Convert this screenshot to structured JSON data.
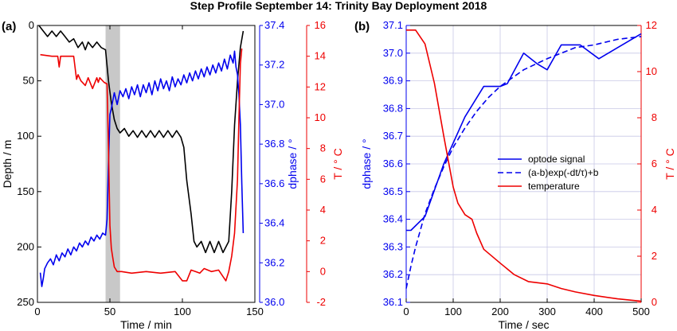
{
  "figure_title": "Step Profile September 14: Trinity Bay Deployment 2018",
  "colors": {
    "black": "#000000",
    "blue": "#0000ee",
    "red": "#ee0000",
    "grid": "#c8c8e6",
    "shade": "#c8c8c8"
  },
  "chart_data": [
    {
      "panel_label": "(a)",
      "type": "line",
      "xlabel": "Time / min",
      "ylabel_left": "Depth / m",
      "ylabel_mid": "dphase / °",
      "ylabel_right": "T / ° C",
      "xlim": [
        0,
        150
      ],
      "ylim_left": [
        250,
        0
      ],
      "ylim_mid": [
        36.0,
        37.4
      ],
      "ylim_right": [
        -2,
        16
      ],
      "x_ticks": [
        0,
        50,
        100,
        150
      ],
      "y_left_ticks": [
        0,
        50,
        100,
        150,
        200,
        250
      ],
      "y_mid_ticks": [
        "36.0",
        "36.2",
        "36.4",
        "36.6",
        "36.8",
        "37.0",
        "37.2",
        "37.4"
      ],
      "y_right_ticks": [
        -2,
        0,
        2,
        4,
        6,
        8,
        10,
        12,
        14,
        16
      ],
      "shaded_x": [
        47,
        57
      ],
      "series": [
        {
          "axis": "left",
          "color": "black",
          "x": [
            1,
            4,
            7,
            10,
            13,
            16,
            19,
            22,
            25,
            28,
            31,
            33,
            35,
            38,
            41,
            44,
            47,
            49,
            51,
            53,
            55,
            57,
            60,
            63,
            66,
            69,
            72,
            75,
            78,
            81,
            84,
            87,
            90,
            93,
            96,
            99,
            101,
            103,
            106,
            108,
            110,
            113,
            116,
            119,
            122,
            125,
            128,
            130,
            132,
            134,
            136,
            138,
            140,
            142
          ],
          "y": [
            0,
            5,
            10,
            5,
            10,
            5,
            10,
            15,
            12,
            20,
            15,
            22,
            15,
            20,
            15,
            20,
            22,
            50,
            70,
            85,
            93,
            97,
            93,
            100,
            95,
            101,
            95,
            101,
            95,
            101,
            95,
            101,
            95,
            101,
            95,
            101,
            110,
            140,
            170,
            195,
            200,
            195,
            205,
            195,
            205,
            195,
            205,
            200,
            195,
            150,
            90,
            50,
            20,
            5
          ]
        },
        {
          "axis": "mid",
          "color": "blue",
          "x": [
            2,
            3,
            4,
            5,
            7,
            9,
            11,
            13,
            15,
            17,
            19,
            21,
            23,
            25,
            27,
            29,
            31,
            33,
            35,
            37,
            39,
            41,
            43,
            45,
            47,
            48,
            49,
            50,
            51,
            52,
            53,
            55,
            57,
            59,
            61,
            63,
            65,
            67,
            69,
            71,
            73,
            75,
            77,
            79,
            81,
            83,
            85,
            87,
            89,
            91,
            93,
            95,
            97,
            99,
            101,
            103,
            105,
            107,
            109,
            111,
            113,
            115,
            117,
            119,
            121,
            123,
            125,
            127,
            129,
            131,
            133,
            135,
            136,
            137,
            138,
            139,
            140,
            141,
            142
          ],
          "y": [
            36.15,
            36.08,
            36.12,
            36.17,
            36.2,
            36.22,
            36.19,
            36.24,
            36.21,
            36.25,
            36.23,
            36.27,
            36.24,
            36.28,
            36.26,
            36.3,
            36.28,
            36.31,
            36.29,
            36.33,
            36.31,
            36.34,
            36.32,
            36.35,
            36.34,
            36.42,
            36.7,
            36.95,
            36.98,
            37.02,
            37.06,
            37.0,
            37.07,
            37.04,
            37.08,
            37.03,
            37.09,
            37.05,
            37.1,
            37.04,
            37.1,
            37.06,
            37.11,
            37.05,
            37.12,
            37.07,
            37.13,
            37.08,
            37.12,
            37.07,
            37.14,
            37.09,
            37.13,
            37.1,
            37.15,
            37.11,
            37.16,
            37.12,
            37.17,
            37.13,
            37.18,
            37.14,
            37.19,
            37.15,
            37.2,
            37.16,
            37.21,
            37.17,
            37.23,
            37.18,
            37.25,
            37.21,
            37.27,
            37.19,
            37.15,
            37.05,
            36.9,
            36.6,
            36.35
          ]
        },
        {
          "axis": "right",
          "color": "red",
          "x": [
            2,
            10,
            14,
            15,
            16,
            20,
            25,
            27,
            28,
            30,
            33,
            35,
            38,
            41,
            42,
            43,
            46,
            48,
            49,
            50,
            51,
            52,
            53,
            55,
            58,
            65,
            75,
            85,
            95,
            100,
            103,
            106,
            109,
            112,
            115,
            120,
            125,
            130,
            132,
            134,
            136,
            138,
            139,
            140,
            141
          ],
          "y": [
            14.1,
            14,
            14,
            13.3,
            14,
            14,
            14,
            12.5,
            12.8,
            12.4,
            12.1,
            12.6,
            11.9,
            12.6,
            12.3,
            12.6,
            12.3,
            12.2,
            8,
            3,
            1.5,
            0.9,
            0.3,
            0,
            0,
            -0.1,
            0,
            -0.1,
            0,
            -0.6,
            -0.6,
            0.1,
            0,
            -0.1,
            0.2,
            0,
            0.1,
            -0.6,
            0.0,
            1,
            2.5,
            6,
            10,
            13.5,
            14.5
          ]
        }
      ]
    },
    {
      "panel_label": "(b)",
      "type": "line",
      "xlabel": "Time / sec",
      "ylabel_left": "dphase / °",
      "ylabel_right": "T / ° C",
      "xlim": [
        0,
        500
      ],
      "ylim_left": [
        36.1,
        37.1
      ],
      "ylim_right": [
        0,
        12
      ],
      "x_ticks": [
        0,
        100,
        200,
        300,
        400,
        500
      ],
      "y_left_ticks": [
        "36.1",
        "36.2",
        "36.3",
        "36.4",
        "36.5",
        "36.6",
        "36.7",
        "36.8",
        "36.9",
        "37.0",
        "37.1"
      ],
      "y_right_ticks": [
        0,
        2,
        4,
        6,
        8,
        10,
        12
      ],
      "legend": [
        "optode signal",
        "(a-b)exp(-dt/τ)+b",
        "temperature"
      ],
      "legend_position": "center-right",
      "series": [
        {
          "name": "optode signal",
          "axis": "left",
          "color": "blue",
          "dash": false,
          "x": [
            0,
            10,
            40,
            80,
            125,
            165,
            200,
            215,
            250,
            280,
            300,
            330,
            370,
            410,
            450,
            500
          ],
          "y": [
            36.36,
            36.36,
            36.41,
            36.6,
            36.77,
            36.88,
            36.88,
            36.89,
            37.0,
            36.96,
            36.94,
            37.03,
            37.03,
            36.98,
            37.02,
            37.07
          ]
        },
        {
          "name": "(a-b)exp(-dt/τ)+b",
          "axis": "left",
          "color": "blue",
          "dash": true,
          "x": [
            0,
            10,
            20,
            40,
            60,
            80,
            100,
            125,
            150,
            175,
            200,
            225,
            250,
            275,
            300,
            330,
            360,
            400,
            450,
            500
          ],
          "y": [
            36.15,
            36.23,
            36.3,
            36.42,
            36.51,
            36.59,
            36.66,
            36.73,
            36.79,
            36.84,
            36.88,
            36.91,
            36.94,
            36.96,
            36.98,
            37.0,
            37.02,
            37.03,
            37.05,
            37.06
          ]
        },
        {
          "name": "temperature",
          "axis": "right",
          "color": "red",
          "dash": false,
          "x": [
            0,
            5,
            20,
            40,
            60,
            80,
            100,
            110,
            125,
            140,
            150,
            165,
            200,
            230,
            260,
            300,
            330,
            360,
            400,
            450,
            500
          ],
          "y": [
            11.8,
            11.8,
            11.8,
            11.2,
            9.5,
            7.2,
            5.0,
            4.3,
            3.8,
            3.6,
            3.0,
            2.3,
            1.7,
            1.2,
            0.9,
            0.8,
            0.6,
            0.45,
            0.3,
            0.15,
            0.05
          ]
        }
      ]
    }
  ]
}
